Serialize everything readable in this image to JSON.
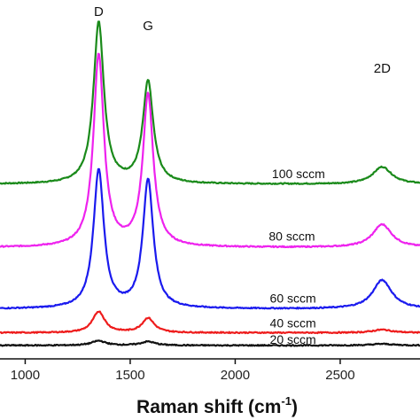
{
  "chart_data": {
    "type": "line",
    "title": "",
    "xlabel_main": "Raman shift (cm",
    "xlabel_sup": "-1",
    "xlabel_tail": ")",
    "ylabel": "",
    "xlim": [
      880,
      2880
    ],
    "x_ticks": [
      {
        "value": 1000,
        "label": "1000"
      },
      {
        "value": 1500,
        "label": "1500"
      },
      {
        "value": 2000,
        "label": "2000"
      },
      {
        "value": 2500,
        "label": "2500"
      }
    ],
    "peak_labels": [
      {
        "label": "D",
        "x": 1350
      },
      {
        "label": "G",
        "x": 1585
      },
      {
        "label": "2D",
        "x": 2700
      }
    ],
    "series": [
      {
        "name": "100 sccm",
        "color": "#1a8a1a",
        "offset": 4.2,
        "peaks": [
          [
            1350,
            4.2,
            30
          ],
          [
            1585,
            2.65,
            30
          ],
          [
            2700,
            0.45,
            55
          ]
        ]
      },
      {
        "name": "80 sccm",
        "color": "#ee22ee",
        "offset": 2.55,
        "peaks": [
          [
            1350,
            5.0,
            30
          ],
          [
            1585,
            3.95,
            30
          ],
          [
            2700,
            0.6,
            55
          ]
        ]
      },
      {
        "name": "60 sccm",
        "color": "#1a1aee",
        "offset": 0.95,
        "peaks": [
          [
            1350,
            3.6,
            30
          ],
          [
            1585,
            3.35,
            30
          ],
          [
            2700,
            0.75,
            55
          ]
        ]
      },
      {
        "name": "40 sccm",
        "color": "#ee1c1c",
        "offset": 0.33,
        "peaks": [
          [
            1350,
            0.55,
            35
          ],
          [
            1585,
            0.38,
            35
          ],
          [
            2700,
            0.08,
            55
          ]
        ]
      },
      {
        "name": "20 sccm",
        "color": "#111111",
        "offset": 0.0,
        "peaks": [
          [
            1350,
            0.12,
            40
          ],
          [
            1585,
            0.1,
            40
          ],
          [
            2700,
            0.04,
            60
          ]
        ]
      }
    ],
    "series_label_x": [
      2175,
      2160,
      2165,
      2165,
      2165
    ],
    "ylim": [
      -0.35,
      9.0
    ],
    "grid": false,
    "legend": "none"
  }
}
